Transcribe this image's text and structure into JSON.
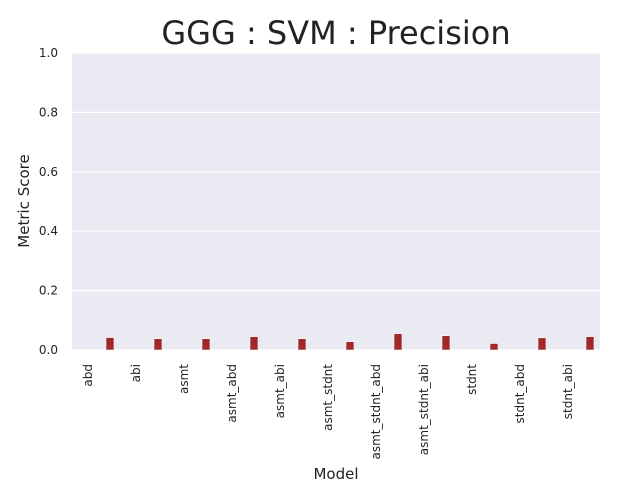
{
  "chart_data": {
    "type": "bar",
    "title": "GGG : SVM : Precision",
    "xlabel": "Model",
    "ylabel": "Metric Score",
    "ylim": [
      0,
      1
    ],
    "yticks": [
      "0.0",
      "0.2",
      "0.4",
      "0.6",
      "0.8",
      "1.0"
    ],
    "categories": [
      "abd",
      "abi",
      "asmt",
      "asmt_abd",
      "asmt_abi",
      "asmt_stdnt",
      "asmt_stdnt_abd",
      "asmt_stdnt_abi",
      "stdnt",
      "stdnt_abd",
      "stdnt_abi"
    ],
    "values": [
      0.042,
      0.038,
      0.038,
      0.045,
      0.038,
      0.028,
      0.055,
      0.048,
      0.022,
      0.041,
      0.045
    ],
    "grid": true,
    "colors": {
      "bar": "#a0282b",
      "plot_background": "#eaeaf2",
      "grid": "#ffffff"
    }
  }
}
